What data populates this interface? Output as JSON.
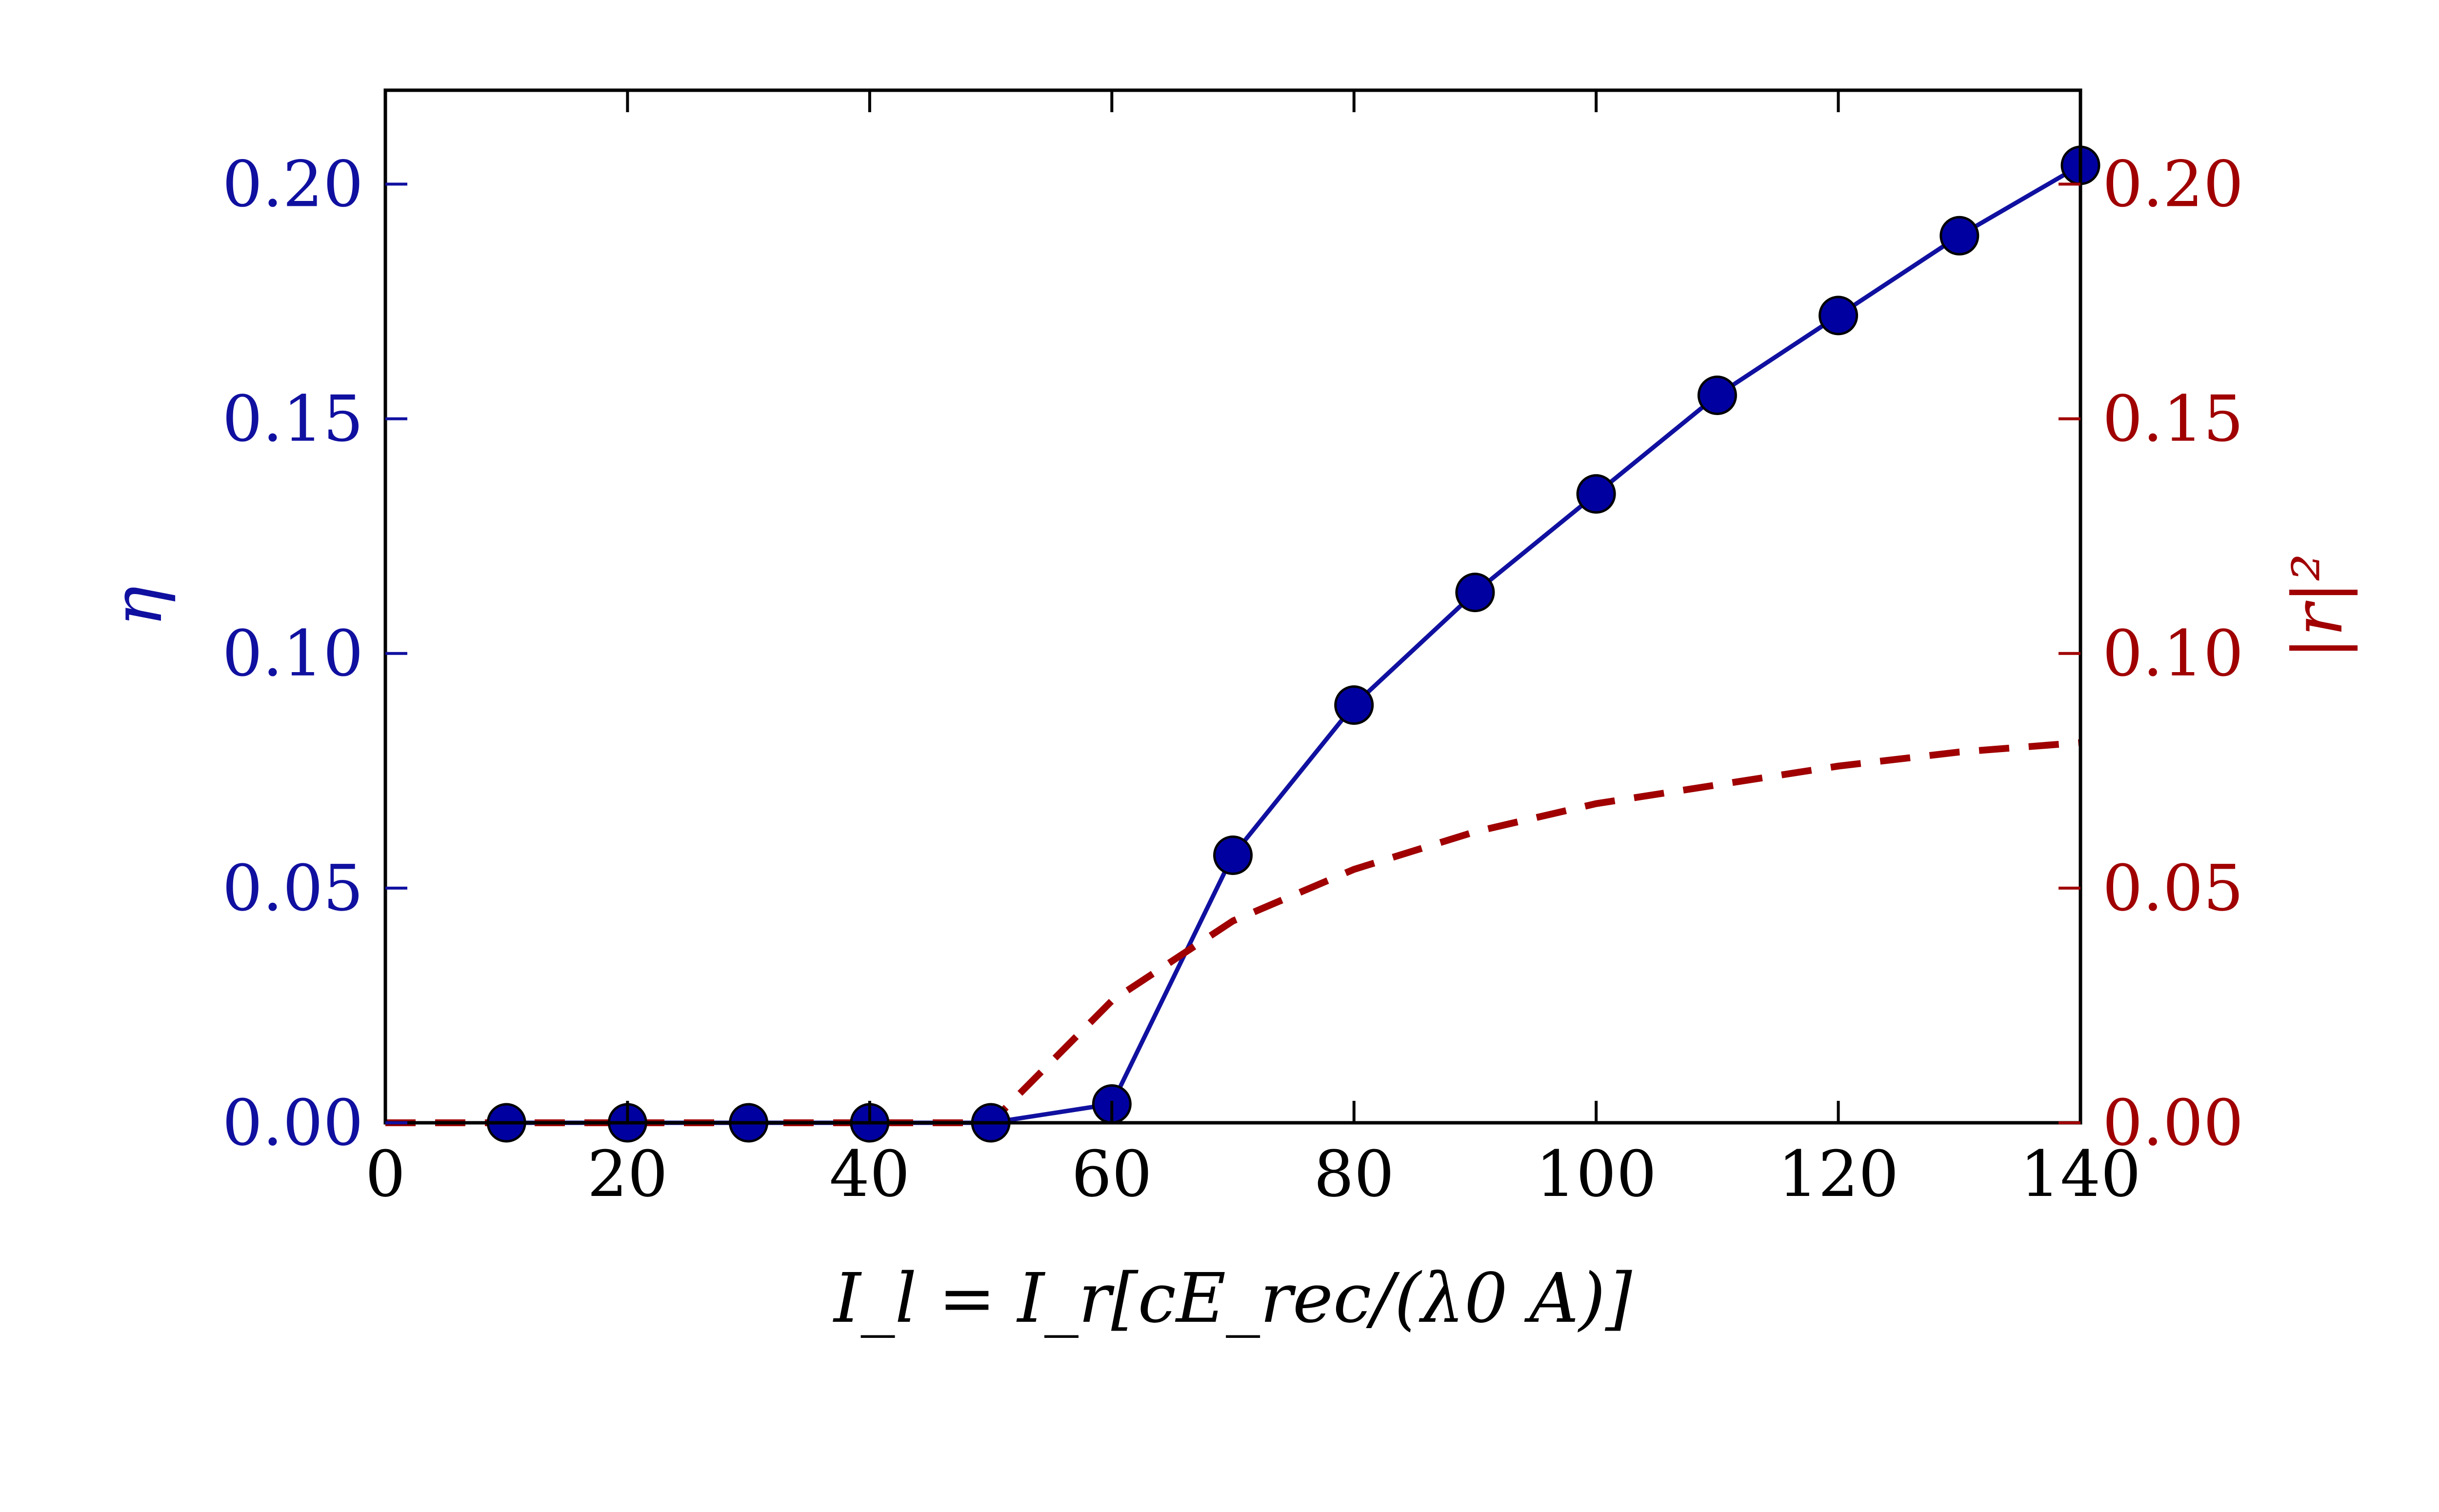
{
  "chart_data": {
    "type": "line",
    "xlabel": "I_l = I_r[cE_rec/(λ0 A)]",
    "xlim": [
      0,
      140
    ],
    "x_ticks": [
      "0",
      "20",
      "40",
      "60",
      "80",
      "100",
      "120",
      "140"
    ],
    "left_axis": {
      "label": "η",
      "color": "#1010a0",
      "ylim": [
        0,
        0.22
      ],
      "ticks": [
        "0.00",
        "0.05",
        "0.10",
        "0.15",
        "0.20"
      ]
    },
    "right_axis": {
      "label": "|r|²",
      "color": "#a00000",
      "ylim": [
        0,
        0.22
      ],
      "ticks": [
        "0.00",
        "0.05",
        "0.10",
        "0.15",
        "0.20"
      ]
    },
    "grid": false,
    "series": [
      {
        "axis": "left",
        "style": "solid line with circle markers",
        "line_color": "#1010a0",
        "marker_color": "#0000a0",
        "x": [
          10,
          20,
          30,
          40,
          50,
          60,
          70,
          80,
          90,
          100,
          110,
          120,
          130,
          140
        ],
        "y": [
          0.0,
          0.0,
          0.0,
          0.0,
          0.0,
          0.004,
          0.057,
          0.089,
          0.113,
          0.134,
          0.155,
          0.172,
          0.189,
          0.204
        ]
      },
      {
        "axis": "right",
        "style": "dashed line",
        "line_color": "#a00000",
        "x": [
          0,
          10,
          20,
          30,
          40,
          50,
          60,
          70,
          80,
          90,
          100,
          110,
          120,
          130,
          140
        ],
        "y": [
          0.0,
          0.0,
          0.0,
          0.0,
          0.0,
          0.0,
          0.026,
          0.043,
          0.054,
          0.062,
          0.068,
          0.072,
          0.076,
          0.079,
          0.081
        ]
      }
    ]
  }
}
